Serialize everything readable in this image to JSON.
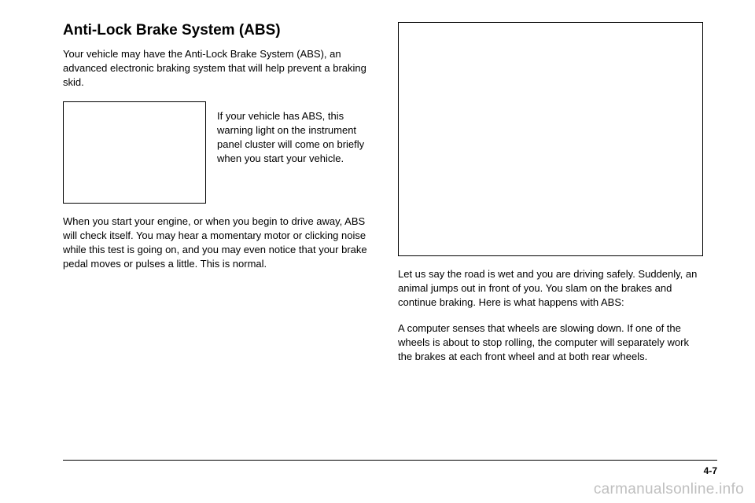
{
  "heading": "Anti-Lock Brake System (ABS)",
  "intro": "Your vehicle may have the Anti-Lock Brake System (ABS), an advanced electronic braking system that will help prevent a braking skid.",
  "sideText": "If your vehicle has ABS, this warning light on the instrument panel cluster will come on briefly when you start your vehicle.",
  "leftPara2": "When you start your engine, or when you begin to drive away, ABS will check itself. You may hear a momentary motor or clicking noise while this test is going on, and you may even notice that your brake pedal moves or pulses a little. This is normal.",
  "rightPara1": "Let us say the road is wet and you are driving safely. Suddenly, an animal jumps out in front of you. You slam on the brakes and continue braking. Here is what happens with ABS:",
  "rightPara2": "A computer senses that wheels are slowing down. If one of the wheels is about to stop rolling, the computer will separately work the brakes at each front wheel and at both rear wheels.",
  "pageNumber": "4-7",
  "watermark": "carmanualsonline.info"
}
